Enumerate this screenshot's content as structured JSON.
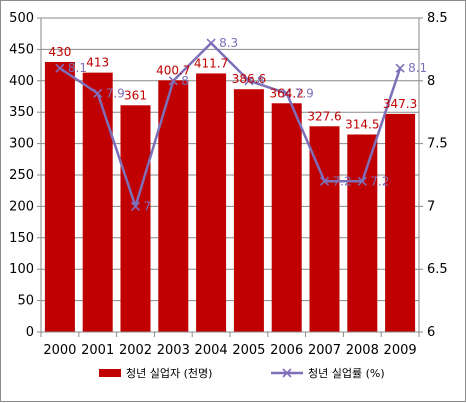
{
  "chart_data": {
    "type": "bar",
    "combo": "bar + line (secondary axis)",
    "categories": [
      "2000",
      "2001",
      "2002",
      "2003",
      "2004",
      "2005",
      "2006",
      "2007",
      "2008",
      "2009"
    ],
    "series": [
      {
        "name": "청년 실업자 (천명)",
        "type": "bar",
        "axis": "left",
        "color": "#c00000",
        "values": [
          430,
          413,
          361,
          400.7,
          411.7,
          386.6,
          364.2,
          327.6,
          314.5,
          347.3
        ],
        "labels": [
          "430",
          "413",
          "361",
          "400.7",
          "411.7",
          "386.6",
          "364.2",
          "327.6",
          "314.5",
          "347.3"
        ]
      },
      {
        "name": "청년 실업률 (%)",
        "type": "line",
        "axis": "right",
        "color": "#7f6fb8",
        "marker": "x",
        "values": [
          8.1,
          7.9,
          7,
          8,
          8.3,
          8,
          7.9,
          7.2,
          7.2,
          8.1
        ],
        "labels": [
          "8.1",
          "7.9",
          "7",
          "8",
          "8.3",
          "8",
          "7.9",
          "7.2",
          "7.2",
          "8.1"
        ]
      }
    ],
    "y_left": {
      "range": [
        0,
        500
      ],
      "ticks": [
        "0",
        "50",
        "100",
        "150",
        "200",
        "250",
        "300",
        "350",
        "400",
        "450",
        "500"
      ]
    },
    "y_right": {
      "range": [
        6,
        8.5
      ],
      "ticks": [
        "6",
        "6.5",
        "7",
        "7.5",
        "8",
        "8.5"
      ]
    },
    "title": "",
    "xlabel": "",
    "ylabel": "",
    "grid": true,
    "legend_position": "bottom"
  }
}
